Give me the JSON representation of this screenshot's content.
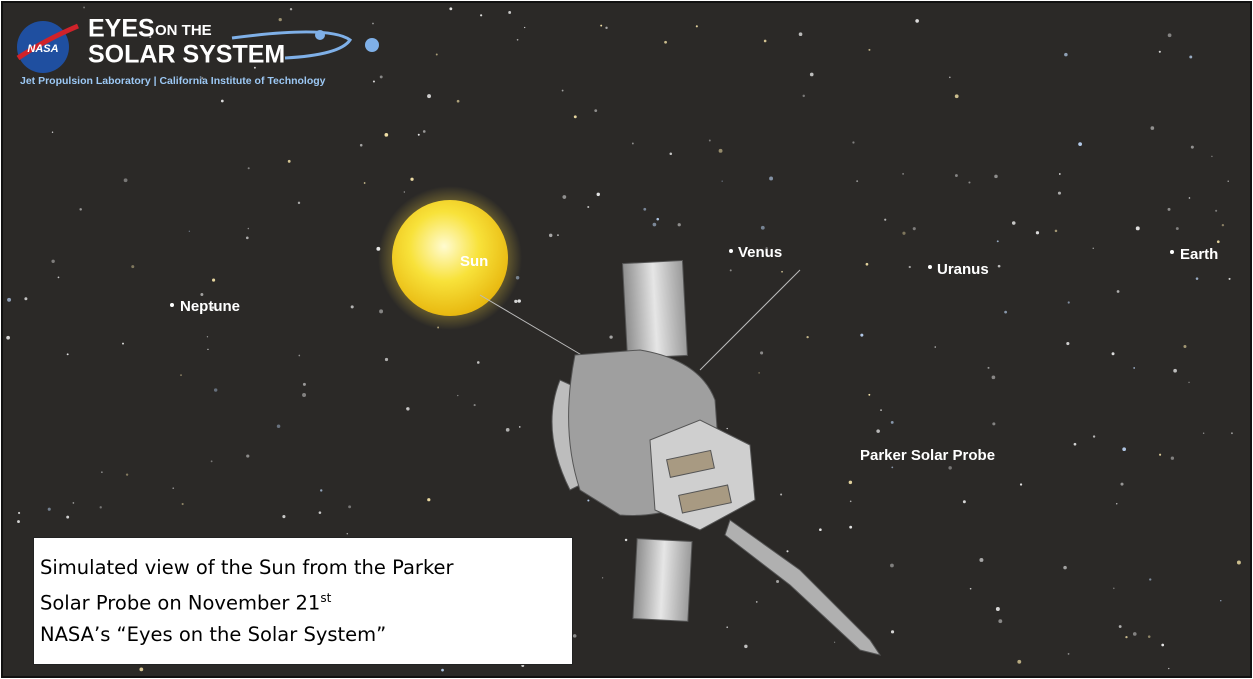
{
  "logo": {
    "agency": "NASA",
    "title_line1": "EYES",
    "title_line1_small": "ON THE",
    "title_line2": "SOLAR SYSTEM",
    "subtitle": "Jet Propulsion Laboratory | California Institute of Technology"
  },
  "labels": {
    "sun": "Sun",
    "venus": "Venus",
    "uranus": "Uranus",
    "earth": "Earth",
    "neptune": "Neptune",
    "spacecraft": "Parker Solar Probe"
  },
  "caption": {
    "line1": "Simulated view of the Sun from the Parker",
    "line2": "Solar Probe on November 21",
    "line2_superscript": "st",
    "line3": "NASA’s “Eyes on the Solar System”"
  }
}
